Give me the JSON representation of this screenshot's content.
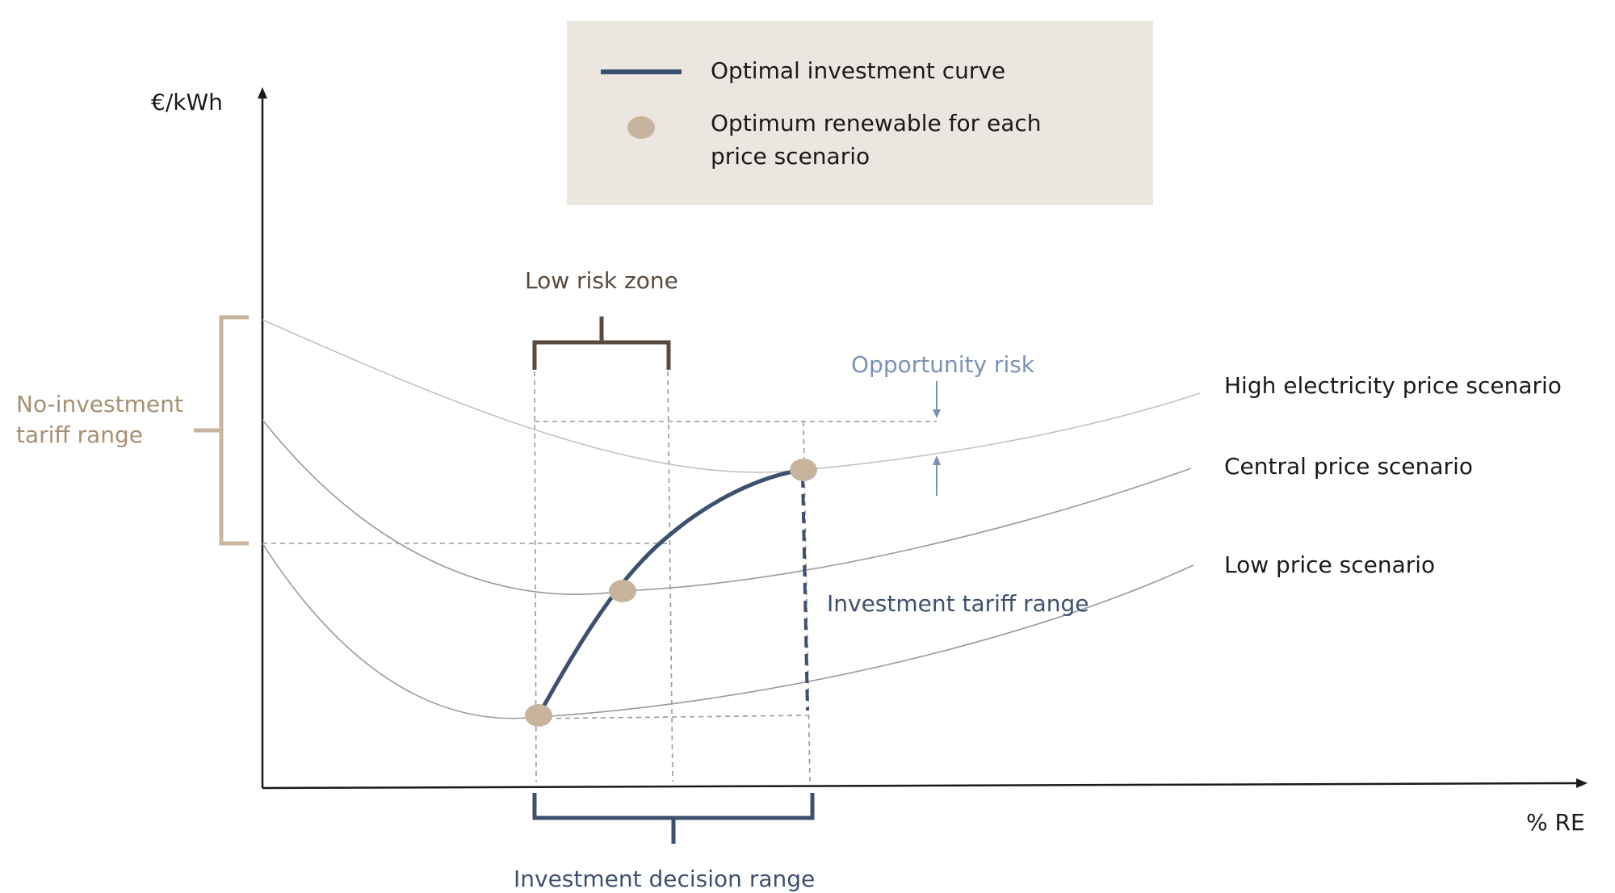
{
  "axes": {
    "y_label": "€/kWh",
    "x_label": "% RE"
  },
  "legend": {
    "curve_label": "Optimal investment curve",
    "dot_label_line1": "Optimum renewable for each",
    "dot_label_line2": "price scenario"
  },
  "annotations": {
    "no_investment_line1": "No-investment",
    "no_investment_line2": "tariff range",
    "low_risk_zone": "Low risk zone",
    "opportunity_risk": "Opportunity risk",
    "investment_tariff_range": "Investment tariff range",
    "investment_decision_range": "Investment decision range"
  },
  "scenarios": {
    "high": "High electricity price scenario",
    "central": "Central price scenario",
    "low": "Low price scenario"
  },
  "colors": {
    "tan": "#c8b49c",
    "tan_text": "#a88f72",
    "navy": "#3e5070",
    "brown": "#5a4a3e",
    "light_blue": "#7b92b8",
    "legend_bg": "#ebe6df",
    "curve_grey": "#9a9a9a",
    "curve_light": "#c2c2c2"
  }
}
